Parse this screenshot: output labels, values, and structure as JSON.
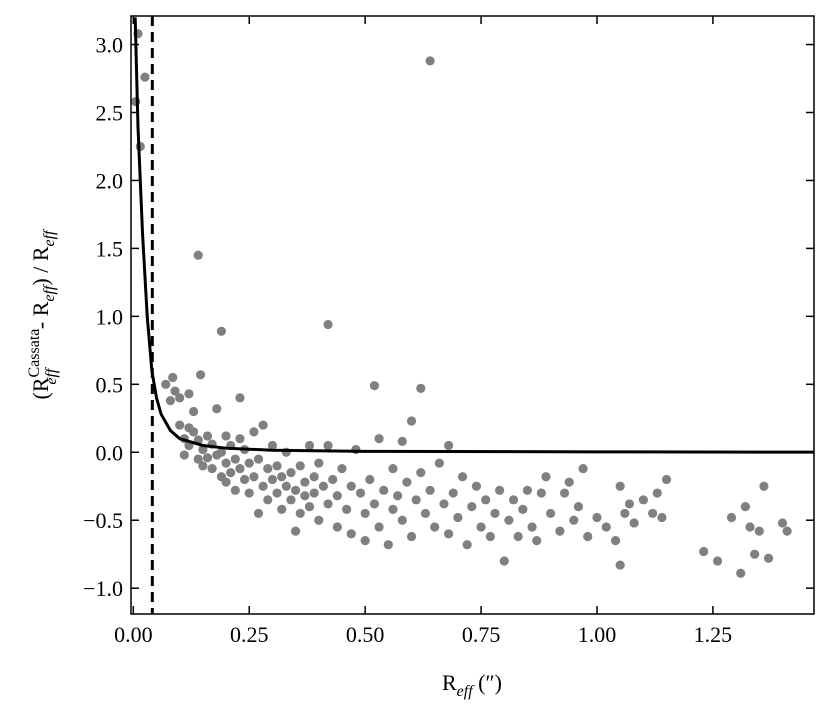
{
  "chart_data": {
    "type": "scatter",
    "xlabel_parts": [
      "R",
      "eff",
      " (″)"
    ],
    "ylabel_parts": [
      "(R",
      "Cassata",
      "eff",
      " - R",
      "eff",
      ") / R",
      "eff"
    ],
    "color": "#808080",
    "x": [
      0.005,
      0.01,
      0.015,
      0.025,
      0.64,
      0.14,
      0.19,
      0.42,
      0.145,
      0.085,
      0.07,
      0.52,
      0.62,
      0.23,
      0.6,
      0.1,
      0.12,
      0.08,
      0.09,
      0.1,
      0.11,
      0.11,
      0.12,
      0.12,
      0.13,
      0.13,
      0.14,
      0.14,
      0.15,
      0.15,
      0.16,
      0.16,
      0.17,
      0.17,
      0.18,
      0.18,
      0.19,
      0.19,
      0.2,
      0.2,
      0.2,
      0.21,
      0.21,
      0.22,
      0.22,
      0.23,
      0.23,
      0.24,
      0.24,
      0.25,
      0.25,
      0.26,
      0.26,
      0.27,
      0.27,
      0.28,
      0.28,
      0.29,
      0.29,
      0.3,
      0.3,
      0.31,
      0.31,
      0.32,
      0.32,
      0.33,
      0.33,
      0.34,
      0.34,
      0.35,
      0.35,
      0.36,
      0.36,
      0.37,
      0.37,
      0.38,
      0.38,
      0.39,
      0.39,
      0.4,
      0.4,
      0.41,
      0.42,
      0.42,
      0.43,
      0.44,
      0.44,
      0.45,
      0.46,
      0.47,
      0.47,
      0.48,
      0.49,
      0.5,
      0.5,
      0.51,
      0.52,
      0.53,
      0.53,
      0.54,
      0.55,
      0.56,
      0.56,
      0.57,
      0.58,
      0.58,
      0.59,
      0.6,
      0.61,
      0.62,
      0.63,
      0.64,
      0.65,
      0.66,
      0.67,
      0.68,
      0.68,
      0.69,
      0.7,
      0.71,
      0.72,
      0.73,
      0.74,
      0.75,
      0.76,
      0.77,
      0.78,
      0.79,
      0.8,
      0.81,
      0.82,
      0.83,
      0.84,
      0.85,
      0.86,
      0.87,
      0.88,
      0.89,
      0.9,
      0.92,
      0.93,
      0.94,
      0.95,
      0.96,
      0.97,
      0.98,
      1.0,
      1.02,
      1.04,
      1.05,
      1.05,
      1.06,
      1.07,
      1.08,
      1.1,
      1.12,
      1.13,
      1.14,
      1.15,
      1.23,
      1.26,
      1.29,
      1.31,
      1.32,
      1.33,
      1.34,
      1.35,
      1.36,
      1.37,
      1.4,
      1.41
    ],
    "values": [
      2.58,
      3.08,
      2.25,
      2.76,
      2.88,
      1.45,
      0.89,
      0.94,
      0.57,
      0.55,
      0.5,
      0.49,
      0.47,
      0.4,
      0.23,
      0.4,
      0.43,
      0.38,
      0.45,
      0.2,
      0.1,
      -0.02,
      0.05,
      0.18,
      0.15,
      0.3,
      0.09,
      -0.05,
      0.02,
      -0.1,
      0.12,
      -0.04,
      0.06,
      -0.12,
      0.32,
      -0.02,
      0.0,
      -0.18,
      0.12,
      -0.08,
      -0.22,
      0.05,
      -0.15,
      -0.05,
      -0.28,
      0.1,
      -0.12,
      -0.2,
      0.02,
      -0.08,
      -0.3,
      0.15,
      -0.18,
      -0.05,
      -0.45,
      -0.25,
      0.2,
      -0.12,
      -0.35,
      -0.2,
      0.05,
      -0.3,
      -0.1,
      -0.42,
      -0.18,
      -0.25,
      0.0,
      -0.35,
      -0.15,
      -0.58,
      -0.28,
      -0.1,
      -0.45,
      -0.22,
      -0.32,
      0.05,
      -0.4,
      -0.18,
      -0.3,
      -0.5,
      -0.08,
      -0.25,
      -0.38,
      0.05,
      -0.2,
      -0.55,
      -0.32,
      -0.12,
      -0.42,
      -0.6,
      -0.25,
      0.02,
      -0.3,
      -0.65,
      -0.45,
      -0.2,
      -0.38,
      0.1,
      -0.55,
      -0.28,
      -0.68,
      -0.42,
      -0.12,
      -0.32,
      0.08,
      -0.5,
      -0.22,
      -0.62,
      -0.35,
      -0.15,
      -0.45,
      -0.28,
      -0.55,
      -0.08,
      -0.38,
      0.05,
      -0.6,
      -0.3,
      -0.48,
      -0.18,
      -0.68,
      -0.4,
      -0.25,
      -0.55,
      -0.35,
      -0.62,
      -0.45,
      -0.28,
      -0.8,
      -0.5,
      -0.35,
      -0.62,
      -0.42,
      -0.28,
      -0.55,
      -0.65,
      -0.3,
      -0.18,
      -0.45,
      -0.58,
      -0.3,
      -0.22,
      -0.5,
      -0.4,
      -0.12,
      -0.62,
      -0.48,
      -0.55,
      -0.65,
      -0.25,
      -0.83,
      -0.45,
      -0.38,
      -0.52,
      -0.35,
      -0.45,
      -0.3,
      -0.48,
      -0.2,
      -0.73,
      -0.8,
      -0.48,
      -0.89,
      -0.4,
      -0.55,
      -0.75,
      -0.58,
      -0.25,
      -0.78,
      -0.52,
      -0.58
    ],
    "curve": {
      "color": "#000000",
      "x": [
        0.004,
        0.01,
        0.02,
        0.03,
        0.04,
        0.05,
        0.06,
        0.08,
        0.1,
        0.15,
        0.2,
        0.3,
        0.5,
        1.0,
        1.47
      ],
      "values": [
        3.2,
        2.4,
        1.6,
        1.0,
        0.6,
        0.4,
        0.28,
        0.16,
        0.1,
        0.05,
        0.03,
        0.015,
        0.007,
        0.003,
        0.001
      ]
    },
    "vline": 0.041,
    "xlim": [
      -0.005,
      1.468
    ],
    "ylim": [
      -1.19,
      3.21
    ],
    "xticks": [
      {
        "value": 0,
        "label": "0.00"
      },
      {
        "value": 0.25,
        "label": "0.25"
      },
      {
        "value": 0.5,
        "label": "0.50"
      },
      {
        "value": 0.75,
        "label": "0.75"
      },
      {
        "value": 1,
        "label": "1.00"
      },
      {
        "value": 1.25,
        "label": "1.25"
      }
    ],
    "yticks": [
      {
        "value": -1,
        "label": "−1.0"
      },
      {
        "value": -0.5,
        "label": "−0.5"
      },
      {
        "value": 0,
        "label": "0.0"
      },
      {
        "value": 0.5,
        "label": "0.5"
      },
      {
        "value": 1,
        "label": "1.0"
      },
      {
        "value": 1.5,
        "label": "1.5"
      },
      {
        "value": 2,
        "label": "2.0"
      },
      {
        "value": 2.5,
        "label": "2.5"
      },
      {
        "value": 3,
        "label": "3.0"
      }
    ]
  }
}
